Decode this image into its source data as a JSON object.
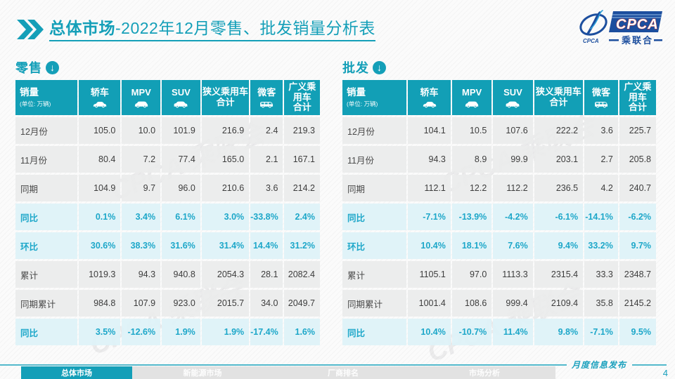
{
  "header": {
    "title_bold": "总体市场",
    "title_rest": "-2022年12月零售、批发销量分析表"
  },
  "logo": {
    "banner_text": "CPCA",
    "banner_subtext": "乘联合",
    "emblem_text": "CPCA"
  },
  "watermark_text": "CPCA 乘联会",
  "unit_note": "(单位: 万辆)",
  "columns": [
    {
      "label": "销量",
      "sub": "(单位: 万辆)"
    },
    {
      "label": "轿车",
      "icon": "sedan-icon"
    },
    {
      "label": "MPV",
      "icon": "mpv-icon"
    },
    {
      "label": "SUV",
      "icon": "suv-icon"
    },
    {
      "label": "狭义乘用车",
      "line2": "合计"
    },
    {
      "label": "微客",
      "icon": "microvan-icon"
    },
    {
      "label": "广义乘用车",
      "line2": "合计"
    }
  ],
  "chart_data": [
    {
      "type": "table",
      "title": "零售",
      "columns": [
        "销量 (单位: 万辆)",
        "轿车",
        "MPV",
        "SUV",
        "狭义乘用车合计",
        "微客",
        "广义乘用车合计"
      ],
      "rows": [
        {
          "label": "12月份",
          "style": "normal",
          "values": [
            "105.0",
            "10.0",
            "101.9",
            "216.9",
            "2.4",
            "219.3"
          ]
        },
        {
          "label": "11月份",
          "style": "normal",
          "values": [
            "80.4",
            "7.2",
            "77.4",
            "165.0",
            "2.1",
            "167.1"
          ]
        },
        {
          "label": "同期",
          "style": "normal",
          "values": [
            "104.9",
            "9.7",
            "96.0",
            "210.6",
            "3.6",
            "214.2"
          ]
        },
        {
          "label": "同比",
          "style": "percent",
          "values": [
            "0.1%",
            "3.4%",
            "6.1%",
            "3.0%",
            "-33.8%",
            "2.4%"
          ]
        },
        {
          "label": "环比",
          "style": "percent",
          "values": [
            "30.6%",
            "38.3%",
            "31.6%",
            "31.4%",
            "14.4%",
            "31.2%"
          ]
        },
        {
          "label": "累计",
          "style": "normal",
          "values": [
            "1019.3",
            "94.3",
            "940.8",
            "2054.3",
            "28.1",
            "2082.4"
          ]
        },
        {
          "label": "同期累计",
          "style": "normal",
          "values": [
            "984.8",
            "107.9",
            "923.0",
            "2015.7",
            "34.0",
            "2049.7"
          ]
        },
        {
          "label": "同比",
          "style": "percent",
          "values": [
            "3.5%",
            "-12.6%",
            "1.9%",
            "1.9%",
            "-17.4%",
            "1.6%"
          ]
        }
      ]
    },
    {
      "type": "table",
      "title": "批发",
      "columns": [
        "销量 (单位: 万辆)",
        "轿车",
        "MPV",
        "SUV",
        "狭义乘用车合计",
        "微客",
        "广义乘用车合计"
      ],
      "rows": [
        {
          "label": "12月份",
          "style": "normal",
          "values": [
            "104.1",
            "10.5",
            "107.6",
            "222.2",
            "3.6",
            "225.7"
          ]
        },
        {
          "label": "11月份",
          "style": "normal",
          "values": [
            "94.3",
            "8.9",
            "99.9",
            "203.1",
            "2.7",
            "205.8"
          ]
        },
        {
          "label": "同期",
          "style": "normal",
          "values": [
            "112.1",
            "12.2",
            "112.2",
            "236.5",
            "4.2",
            "240.7"
          ]
        },
        {
          "label": "同比",
          "style": "percent",
          "values": [
            "-7.1%",
            "-13.9%",
            "-4.2%",
            "-6.1%",
            "-14.1%",
            "-6.2%"
          ]
        },
        {
          "label": "环比",
          "style": "percent",
          "values": [
            "10.4%",
            "18.1%",
            "7.6%",
            "9.4%",
            "33.2%",
            "9.7%"
          ]
        },
        {
          "label": "累计",
          "style": "normal",
          "values": [
            "1105.1",
            "97.0",
            "1113.3",
            "2315.4",
            "33.3",
            "2348.7"
          ]
        },
        {
          "label": "同期累计",
          "style": "normal",
          "values": [
            "1001.4",
            "108.6",
            "999.4",
            "2109.4",
            "35.8",
            "2145.2"
          ]
        },
        {
          "label": "同比",
          "style": "percent",
          "values": [
            "10.4%",
            "-10.7%",
            "11.4%",
            "9.8%",
            "-7.1%",
            "9.5%"
          ]
        }
      ]
    }
  ],
  "footer": {
    "tabs": [
      {
        "label": "总体市场",
        "active": true
      },
      {
        "label": "新能源市场",
        "active": false
      },
      {
        "label": "厂商排名",
        "active": false
      },
      {
        "label": "市场分析",
        "active": false
      }
    ],
    "note": "月度信息发布",
    "page_number": "4"
  },
  "colors": {
    "accent": "#149fb8",
    "header_bg": "#129fb6",
    "percent_text": "#1da7c9",
    "percent_row_bg": "#e0f2f8",
    "normal_row_bg": "#eaebec",
    "logo_blue": "#1c4e9e",
    "logo_red": "#d5342c"
  }
}
